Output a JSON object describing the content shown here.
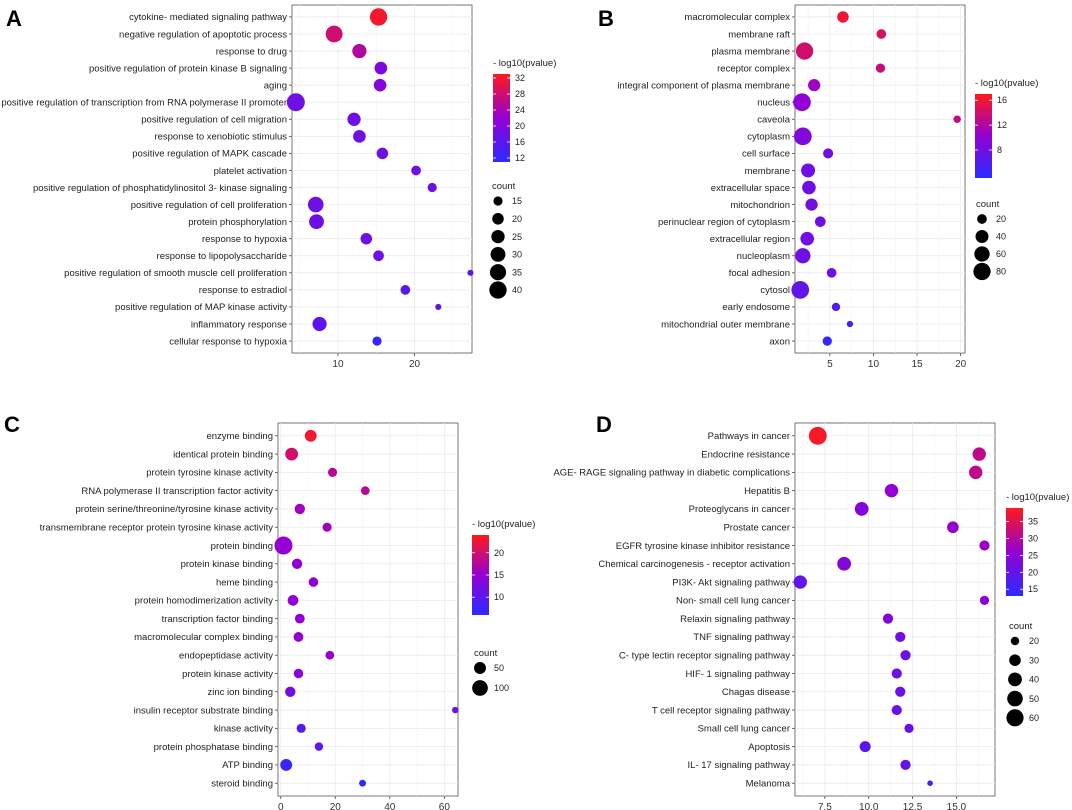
{
  "chart_data": [
    {
      "panel": "A",
      "type": "scatter",
      "xlim": [
        4,
        27.5
      ],
      "xticks": [
        "10",
        "20"
      ],
      "categories": [
        "cytokine- mediated signaling pathway",
        "negative regulation of apoptotic process",
        "response to drug",
        "positive regulation of protein kinase B signaling",
        "aging",
        "positive regulation of transcription from RNA polymerase II promoter",
        "positive regulation of cell migration",
        "response to xenobiotic stimulus",
        "positive regulation of MAPK cascade",
        "platelet activation",
        "positive regulation of phosphatidylinositol 3- kinase signaling",
        "positive regulation of cell proliferation",
        "protein phosphorylation",
        "response to hypoxia",
        "response to lipopolysaccharide",
        "positive regulation of smooth muscle cell proliferation",
        "response to estradiol",
        "positive regulation of MAP kinase activity",
        "inflammatory response",
        "cellular response to hypoxia"
      ],
      "x": [
        15.3,
        9.5,
        12.8,
        15.6,
        15.5,
        4.5,
        12.1,
        12.8,
        15.8,
        20.2,
        22.3,
        7.1,
        7.2,
        13.7,
        15.3,
        27.3,
        18.8,
        23.1,
        7.6,
        15.1
      ],
      "size": [
        40,
        38,
        28,
        23,
        23,
        43,
        25,
        23,
        20,
        16,
        15,
        33,
        30,
        20,
        18,
        11,
        16,
        11,
        28,
        15
      ],
      "color": [
        32,
        28,
        25,
        20,
        20,
        18,
        18,
        18,
        18,
        18,
        18,
        18,
        18,
        18,
        18,
        16,
        16,
        16,
        16,
        12
      ],
      "color_title": "- log10(pvalue)",
      "color_ticks": [
        "32",
        "28",
        "24",
        "20",
        "16",
        "12"
      ],
      "color_range": [
        11,
        33
      ],
      "size_title": "count",
      "size_ticks": [
        "15",
        "20",
        "25",
        "30",
        "35",
        "40"
      ],
      "size_range": [
        10,
        43
      ]
    },
    {
      "panel": "B",
      "type": "scatter",
      "xlim": [
        1,
        20.5
      ],
      "xticks": [
        "5",
        "10",
        "15",
        "20"
      ],
      "categories": [
        "macromolecular complex",
        "membrane raft",
        "plasma membrane",
        "receptor complex",
        "integral component of plasma membrane",
        "nucleus",
        "caveola",
        "cytoplasm",
        "cell surface",
        "membrane",
        "extracellular space",
        "mitochondrion",
        "perinuclear region of cytoplasm",
        "extracellular region",
        "nucleoplasm",
        "focal adhesion",
        "cytosol",
        "early endosome",
        "mitochondrial outer membrane",
        "axon"
      ],
      "x": [
        6.5,
        10.9,
        2.1,
        10.8,
        3.2,
        1.8,
        19.6,
        1.9,
        4.8,
        2.5,
        2.6,
        2.9,
        3.9,
        2.4,
        1.9,
        5.2,
        1.6,
        5.7,
        7.3,
        4.7
      ],
      "size": [
        30,
        20,
        80,
        18,
        35,
        85,
        11,
        85,
        22,
        48,
        45,
        35,
        25,
        45,
        60,
        20,
        85,
        14,
        8,
        18
      ],
      "color": [
        16,
        14.5,
        14,
        13.5,
        11,
        10,
        13,
        9,
        8,
        8,
        8,
        8,
        8,
        8,
        8,
        8,
        7,
        6,
        5,
        4
      ],
      "color_title": "- log10(pvalue)",
      "color_ticks": [
        "16",
        "12",
        "8"
      ],
      "color_range": [
        3.5,
        17
      ],
      "size_title": "count",
      "size_ticks": [
        "20",
        "40",
        "60",
        "80"
      ],
      "size_range": [
        5,
        88
      ]
    },
    {
      "panel": "C",
      "type": "scatter",
      "xlim": [
        -1,
        65
      ],
      "xticks": [
        "0",
        "20",
        "40",
        "60"
      ],
      "categories": [
        "enzyme binding",
        "identical protein binding",
        "protein tyrosine kinase activity",
        "RNA polymerase II transcription factor activity",
        "protein serine/threonine/tyrosine kinase activity",
        "transmembrane receptor protein tyrosine kinase activity",
        "protein binding",
        "protein kinase binding",
        "heme binding",
        "protein homodimerization activity",
        "transcription factor binding",
        "macromolecular complex binding",
        "endopeptidase activity",
        "protein kinase activity",
        "zinc ion binding",
        "insulin receptor substrate binding",
        "kinase activity",
        "protein phosphatase binding",
        "ATP binding",
        "steroid binding"
      ],
      "x": [
        11,
        4,
        19,
        31,
        7,
        17,
        1,
        6,
        12,
        4.5,
        7,
        6.5,
        18,
        6.5,
        3.5,
        64,
        7.5,
        14,
        2,
        30
      ],
      "size": [
        50,
        60,
        25,
        22,
        35,
        25,
        140,
        35,
        28,
        38,
        30,
        30,
        22,
        28,
        35,
        10,
        25,
        20,
        50,
        12
      ],
      "color": [
        23,
        20,
        18,
        18,
        16,
        16,
        15,
        15,
        15,
        15,
        15,
        15,
        15,
        14,
        12,
        11,
        10,
        10,
        7,
        6
      ],
      "color_title": "- log10(pvalue)",
      "color_ticks": [
        "20",
        "15",
        "10"
      ],
      "color_range": [
        6,
        24
      ],
      "size_title": "count",
      "size_ticks": [
        "50",
        "100"
      ],
      "size_range": [
        5,
        140
      ]
    },
    {
      "panel": "D",
      "type": "scatter",
      "xlim": [
        5.8,
        17.2
      ],
      "xticks": [
        "7.5",
        "10.0",
        "12.5",
        "15.0"
      ],
      "categories": [
        "Pathways in cancer",
        "Endocrine resistance",
        "AGE- RAGE signaling pathway in diabetic complications",
        "Hepatitis B",
        "Proteoglycans in cancer",
        "Prostate cancer",
        "EGFR tyrosine kinase inhibitor resistance",
        "Chemical carcinogenesis -  receptor activation",
        "PI3K- Akt signaling pathway",
        "Non- small cell lung cancer",
        "Relaxin signaling pathway",
        "TNF signaling pathway",
        "C- type lectin receptor signaling pathway",
        "HIF- 1 signaling pathway",
        "Chagas disease",
        "T cell receptor signaling pathway",
        "Small cell lung cancer",
        "Apoptosis",
        "IL- 17 signaling pathway",
        "Melanoma"
      ],
      "x": [
        7.1,
        16.3,
        16.1,
        11.3,
        9.6,
        14.8,
        16.6,
        8.6,
        6.1,
        16.6,
        11.1,
        11.8,
        12.1,
        11.6,
        11.8,
        11.6,
        12.3,
        9.8,
        12.1,
        13.5
      ],
      "size": [
        65,
        38,
        38,
        38,
        40,
        30,
        25,
        40,
        38,
        22,
        25,
        25,
        25,
        25,
        25,
        25,
        22,
        28,
        25,
        15
      ],
      "color": [
        38,
        31,
        31,
        26,
        24,
        26,
        27,
        24,
        20,
        25,
        24,
        22,
        21,
        21,
        21,
        21,
        21,
        19,
        20,
        15
      ],
      "color_title": "- log10(pvalue)",
      "color_ticks": [
        "35",
        "30",
        "25",
        "20",
        "15"
      ],
      "color_range": [
        13,
        39
      ],
      "size_title": "count",
      "size_ticks": [
        "20",
        "30",
        "40",
        "50",
        "60"
      ],
      "size_range": [
        14,
        66
      ]
    }
  ],
  "colors": {
    "low": "#2b2bff",
    "mid": "#9400d3",
    "high": "#ff1a1a"
  }
}
